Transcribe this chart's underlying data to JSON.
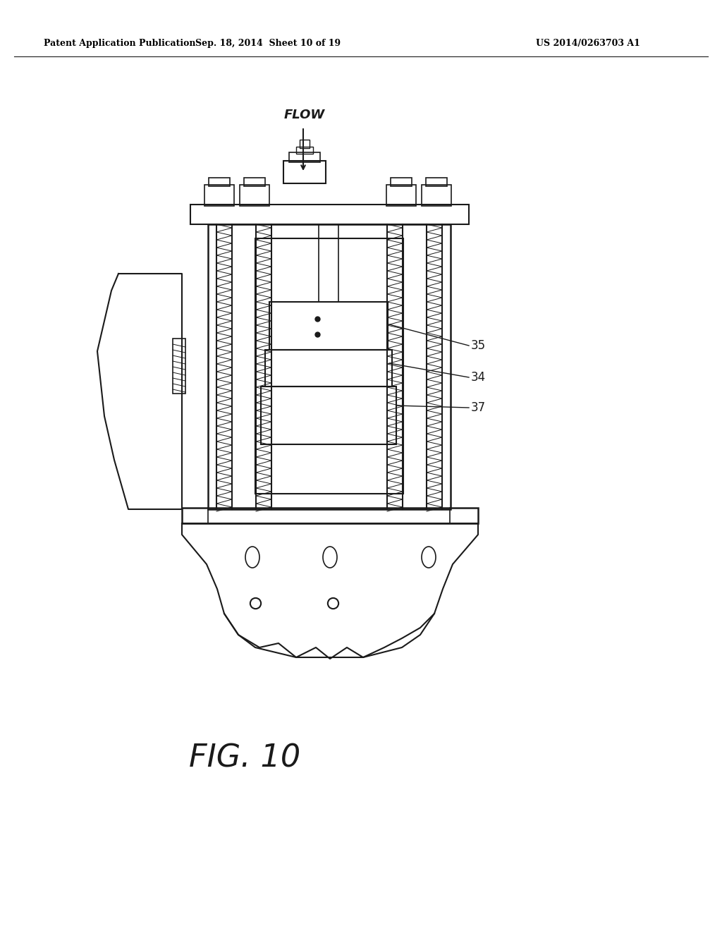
{
  "background_color": "#ffffff",
  "header_left": "Patent Application Publication",
  "header_center": "Sep. 18, 2014  Sheet 10 of 19",
  "header_right": "US 2014/0263703 A1",
  "figure_label": "FIG. 10",
  "flow_label": "FLOW",
  "label_35": "35",
  "label_34": "34",
  "label_37": "37",
  "line_color": "#1a1a1a",
  "line_width": 1.2
}
